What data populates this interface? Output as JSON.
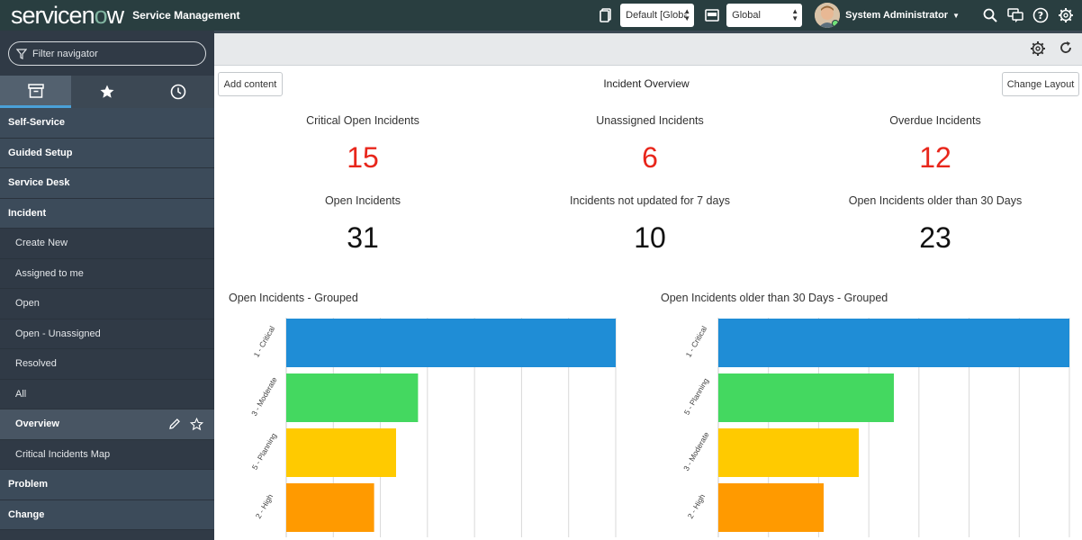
{
  "header": {
    "logo": "servicenow",
    "app_title": "Service Management",
    "update_set": "Default [Globa",
    "app_scope": "Global",
    "user_name": "System Administrator"
  },
  "sidebar": {
    "filter_placeholder": "Filter navigator",
    "tabs": [
      "all-apps",
      "favorites",
      "history"
    ],
    "items": [
      {
        "label": "Self-Service",
        "kind": "module"
      },
      {
        "label": "Guided Setup",
        "kind": "module"
      },
      {
        "label": "Service Desk",
        "kind": "module"
      },
      {
        "label": "Incident",
        "kind": "module"
      },
      {
        "label": "Create New",
        "kind": "sub"
      },
      {
        "label": "Assigned to me",
        "kind": "sub"
      },
      {
        "label": "Open",
        "kind": "sub"
      },
      {
        "label": "Open - Unassigned",
        "kind": "sub"
      },
      {
        "label": "Resolved",
        "kind": "sub"
      },
      {
        "label": "All",
        "kind": "sub"
      },
      {
        "label": "Overview",
        "kind": "sub-selected"
      },
      {
        "label": "Critical Incidents Map",
        "kind": "sub"
      },
      {
        "label": "Problem",
        "kind": "module"
      },
      {
        "label": "Change",
        "kind": "module"
      }
    ]
  },
  "page": {
    "title": "Incident Overview",
    "add_content": "Add content",
    "change_layout": "Change Layout"
  },
  "stats": [
    {
      "label": "Critical Open Incidents",
      "value": "15",
      "color": "#e8261b"
    },
    {
      "label": "Unassigned Incidents",
      "value": "6",
      "color": "#e8261b"
    },
    {
      "label": "Overdue Incidents",
      "value": "12",
      "color": "#e8261b"
    },
    {
      "label": "Open Incidents",
      "value": "31",
      "color": "#111111"
    },
    {
      "label": "Incidents not updated for 7 days",
      "value": "10",
      "color": "#111111"
    },
    {
      "label": "Open Incidents older than 30 Days",
      "value": "23",
      "color": "#111111"
    }
  ],
  "chart_data": [
    {
      "type": "bar",
      "orientation": "horizontal",
      "title": "Open Incidents - Grouped",
      "categories": [
        "1 - Critical",
        "3 - Moderate",
        "5 - Planning",
        "2 - High"
      ],
      "values": [
        15,
        6,
        5,
        4
      ],
      "colors": [
        "#1f8dd6",
        "#44d860",
        "#ffca00",
        "#ff9a00"
      ],
      "xlim": [
        0,
        15
      ],
      "grid": true
    },
    {
      "type": "bar",
      "orientation": "horizontal",
      "title": "Open Incidents older than 30 Days - Grouped",
      "categories": [
        "1 - Critical",
        "5 - Planning",
        "3 - Moderate",
        "2 - High"
      ],
      "values": [
        10,
        5,
        4,
        3
      ],
      "colors": [
        "#1f8dd6",
        "#44d860",
        "#ffca00",
        "#ff9a00"
      ],
      "xlim": [
        0,
        10
      ],
      "grid": true
    }
  ]
}
